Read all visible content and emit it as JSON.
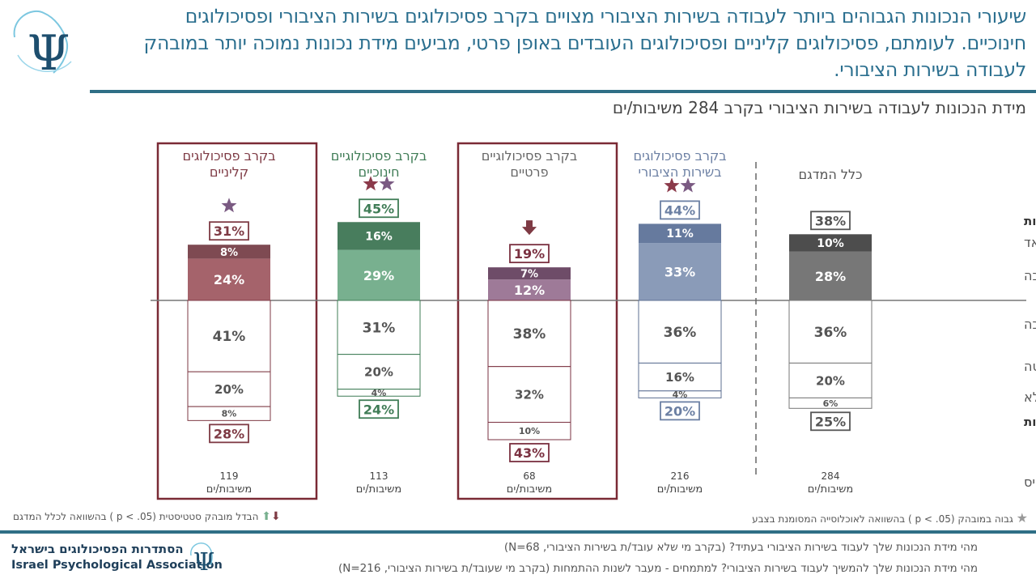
{
  "header": {
    "title": "שיעורי הנכונות הגבוהים ביותר לעבודה בשירות הציבורי מצויים בקרב פסיכולוגים בשירות הציבורי ופסיכולוגים חינוכיים. לעומתם, פסיכולוגים קליניים ופסיכולוגים העובדים באופן פרטי, מביעים מידת נכונות נמוכה יותר במובהק לעבודה בשירות הציבורי.",
    "subtitle": "מידת הנכונות לעבודה בשירות הציבורי בקרב 284  משיבות/ים",
    "logo_icon": "psi-logo-icon"
  },
  "chart_data": {
    "type": "bar",
    "subtype": "diverging-stacked",
    "categories": [
      "כלל המדגם",
      "בקרב פסיכולוגים בשירות הציבורי",
      "בקרב פסיכולוגיים פרטיים",
      "בקרב פסיכולוגיים חינוכיים",
      "בקרב פסיכולוגים קליניים"
    ],
    "category_lines": [
      [
        "כלל המדגם"
      ],
      [
        "בקרב פסיכולוגים",
        "בשירות הציבורי"
      ],
      [
        "בקרב פסיכולוגיים",
        "פרטיים"
      ],
      [
        "בקרב פסיכולוגיים",
        "חינוכיים"
      ],
      [
        "בקרב פסיכולוגים",
        "קליניים"
      ]
    ],
    "row_labels": [
      "סה\"כ נכונות",
      "במידה רבה מאד",
      "במידה רבה",
      "ככה ככה",
      "במידה מועטה",
      "כלל לא",
      "סה\"כ חוסר נכונות",
      "בסיס"
    ],
    "series": [
      {
        "name": "במידה רבה מאד",
        "values": [
          10,
          11,
          7,
          16,
          8
        ]
      },
      {
        "name": "במידה רבה",
        "values": [
          28,
          33,
          12,
          29,
          24
        ]
      },
      {
        "name": "ככה ככה",
        "values": [
          36,
          36,
          38,
          31,
          41
        ]
      },
      {
        "name": "במידה מועטה",
        "values": [
          20,
          16,
          32,
          20,
          20
        ]
      },
      {
        "name": "כלל לא",
        "values": [
          6,
          4,
          10,
          4,
          8
        ]
      }
    ],
    "total_willing": [
      38,
      44,
      19,
      45,
      31
    ],
    "total_unwilling": [
      25,
      20,
      43,
      24,
      28
    ],
    "base_n": [
      284,
      216,
      68,
      113,
      119
    ],
    "base_label": "משיבות/ים",
    "stars": [
      0,
      2,
      0,
      2,
      1
    ],
    "arrows": [
      "",
      "",
      "down",
      "",
      ""
    ],
    "highlighted": [
      false,
      false,
      true,
      false,
      true
    ],
    "colors": {
      "dark": [
        "#4d4d4d",
        "#667a9e",
        "#6e4c68",
        "#487d5d",
        "#7e4a52"
      ],
      "light": [
        "#777777",
        "#8a9bb8",
        "#9e7a98",
        "#78b08f",
        "#a5636b"
      ],
      "text": [
        "#555555",
        "#6b7fa3",
        "#666666",
        "#3f7c56",
        "#7e3a44"
      ],
      "box_border": [
        "#777777",
        "#5c6f92",
        "#7a3040",
        "#3f7c56",
        "#7e3a44"
      ],
      "star_left": [
        "#8b3a4a",
        "#8b3a4a",
        "#8b3a4a",
        "#8b3a4a",
        "#7a5a82"
      ],
      "star_right": [
        "#7a5a82",
        "#7a5a82",
        "#7a5a82",
        "#7a5a82",
        "#7a5a82"
      ],
      "highlight_border": "#7a2a35"
    }
  },
  "legend": {
    "arrows_note": "הבדל מובהק סטטיסטית (p < .05 ) בהשוואה לכלל המדגם",
    "star_note": "גבוה במובהק (p < .05 ) בהשוואה לאוכלוסייה  המסומנת בצבע"
  },
  "footer": {
    "q1": "מהי מידת הנכונות שלך לעבוד בשירות הציבורי בעתיד? (בקרב מי שלא עובד/ת בשירות הציבורי, N=68)",
    "q2": "מהי מידת הנכונות שלך להמשיך לעבוד בשירות הציבורי? למתמחים - מעבר לשנות ההתמחות (בקרב מי שעובד/ת בשירות הציבורי, N=216)",
    "org_he": "הסתדרות הפסיכולוגים בישראל",
    "org_en": "Israel Psychological Association"
  }
}
